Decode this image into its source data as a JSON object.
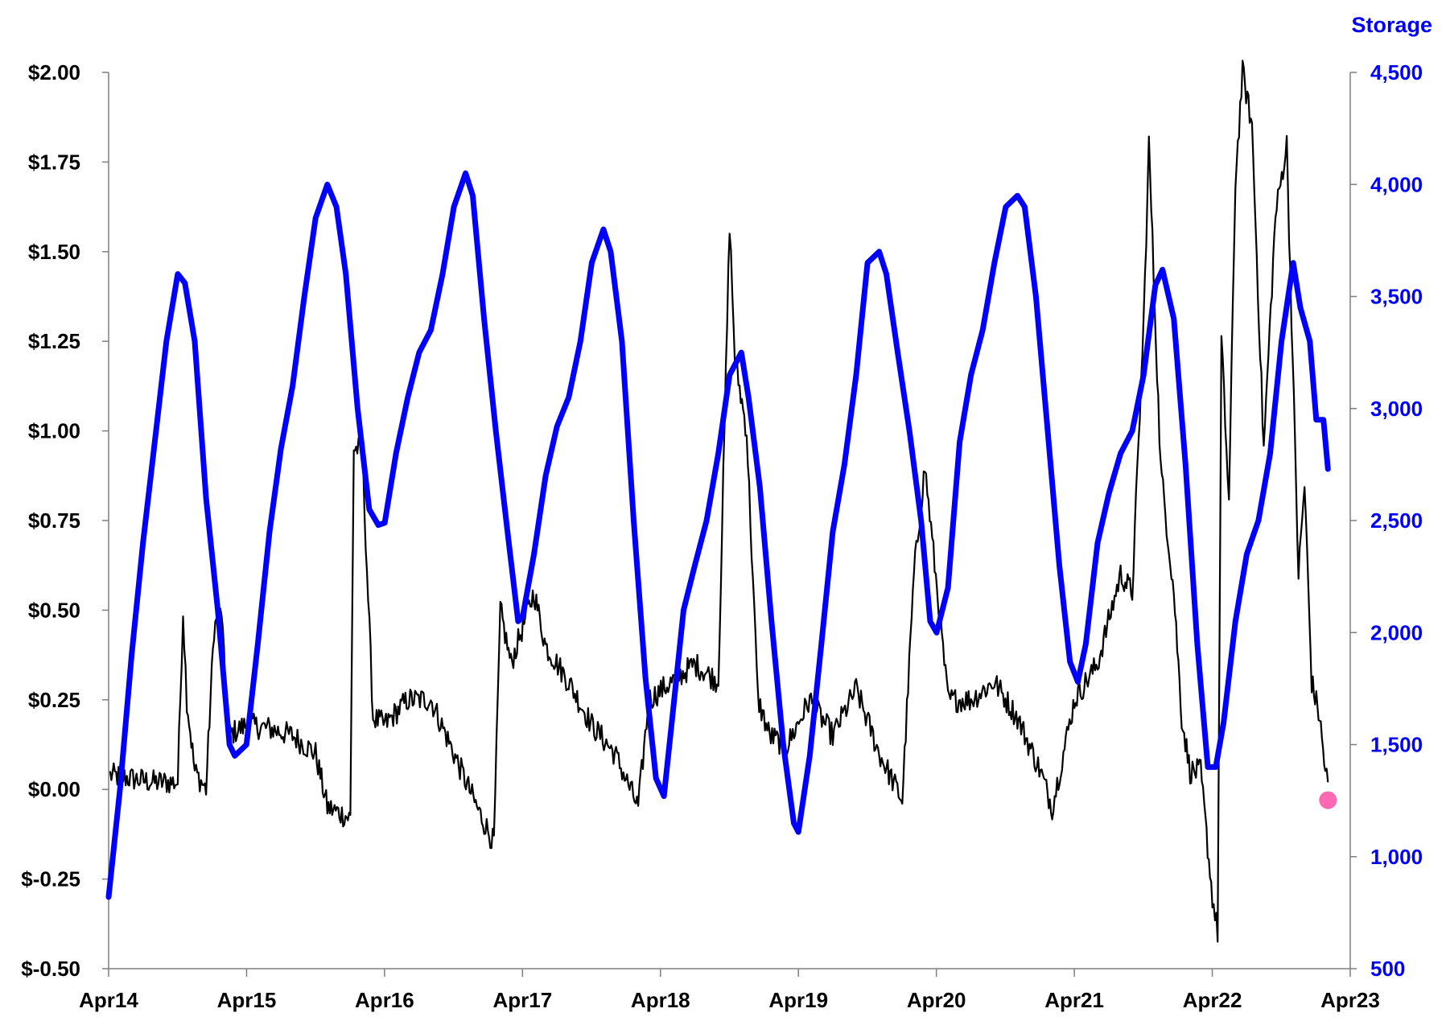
{
  "chart_data": {
    "type": "line",
    "title": "",
    "xlabel": "",
    "ylabel": "",
    "y2label": "Storage",
    "grid": false,
    "x_ticks": [
      "Apr14",
      "Apr15",
      "Apr16",
      "Apr17",
      "Apr18",
      "Apr19",
      "Apr20",
      "Apr21",
      "Apr22",
      "Apr23"
    ],
    "y_left": {
      "range": [
        -0.5,
        2.0
      ],
      "ticks": [
        -0.5,
        -0.25,
        0.0,
        0.25,
        0.5,
        0.75,
        1.0,
        1.25,
        1.5,
        1.75,
        2.0
      ],
      "tick_labels": [
        "$-0.50",
        "$-0.25",
        "$0.00",
        "$0.25",
        "$0.50",
        "$0.75",
        "$1.00",
        "$1.25",
        "$1.50",
        "$1.75",
        "$2.00"
      ]
    },
    "y_right": {
      "range": [
        500,
        4500
      ],
      "ticks": [
        500,
        1000,
        1500,
        2000,
        2500,
        3000,
        3500,
        4000,
        4500
      ],
      "tick_labels": [
        "500",
        "1,000",
        "1,500",
        "2,000",
        "2,500",
        "3,000",
        "3,500",
        "4,000",
        "4,500"
      ]
    },
    "series": [
      {
        "axis": "right",
        "color": "#0000ff",
        "style": "thick-line",
        "points": [
          [
            "2014-04-01",
            820
          ],
          [
            "2014-05-01",
            1300
          ],
          [
            "2014-06-01",
            1900
          ],
          [
            "2014-07-01",
            2400
          ],
          [
            "2014-08-01",
            2850
          ],
          [
            "2014-09-01",
            3300
          ],
          [
            "2014-10-01",
            3600
          ],
          [
            "2014-10-20",
            3560
          ],
          [
            "2014-11-15",
            3300
          ],
          [
            "2014-12-15",
            2600
          ],
          [
            "2015-01-15",
            2100
          ],
          [
            "2015-02-15",
            1500
          ],
          [
            "2015-03-01",
            1450
          ],
          [
            "2015-04-01",
            1500
          ],
          [
            "2015-05-01",
            1950
          ],
          [
            "2015-06-01",
            2450
          ],
          [
            "2015-07-01",
            2820
          ],
          [
            "2015-08-01",
            3100
          ],
          [
            "2015-09-01",
            3500
          ],
          [
            "2015-10-01",
            3850
          ],
          [
            "2015-11-01",
            4000
          ],
          [
            "2015-11-25",
            3900
          ],
          [
            "2015-12-20",
            3600
          ],
          [
            "2016-01-20",
            3000
          ],
          [
            "2016-02-20",
            2550
          ],
          [
            "2016-03-15",
            2480
          ],
          [
            "2016-04-01",
            2490
          ],
          [
            "2016-05-01",
            2800
          ],
          [
            "2016-06-01",
            3050
          ],
          [
            "2016-07-01",
            3250
          ],
          [
            "2016-08-01",
            3350
          ],
          [
            "2016-09-01",
            3600
          ],
          [
            "2016-10-01",
            3900
          ],
          [
            "2016-11-01",
            4050
          ],
          [
            "2016-11-20",
            3950
          ],
          [
            "2016-12-20",
            3400
          ],
          [
            "2017-01-20",
            2900
          ],
          [
            "2017-02-20",
            2450
          ],
          [
            "2017-03-20",
            2050
          ],
          [
            "2017-04-01",
            2070
          ],
          [
            "2017-05-01",
            2350
          ],
          [
            "2017-06-01",
            2700
          ],
          [
            "2017-07-01",
            2920
          ],
          [
            "2017-08-01",
            3050
          ],
          [
            "2017-09-01",
            3300
          ],
          [
            "2017-10-01",
            3650
          ],
          [
            "2017-11-01",
            3800
          ],
          [
            "2017-11-20",
            3700
          ],
          [
            "2017-12-20",
            3300
          ],
          [
            "2018-01-20",
            2500
          ],
          [
            "2018-02-20",
            1800
          ],
          [
            "2018-03-20",
            1350
          ],
          [
            "2018-04-10",
            1270
          ],
          [
            "2018-05-01",
            1600
          ],
          [
            "2018-06-01",
            2100
          ],
          [
            "2018-07-01",
            2300
          ],
          [
            "2018-08-01",
            2500
          ],
          [
            "2018-09-01",
            2800
          ],
          [
            "2018-10-01",
            3150
          ],
          [
            "2018-11-01",
            3250
          ],
          [
            "2018-11-20",
            3050
          ],
          [
            "2018-12-20",
            2650
          ],
          [
            "2019-01-20",
            2050
          ],
          [
            "2019-02-20",
            1500
          ],
          [
            "2019-03-20",
            1150
          ],
          [
            "2019-04-01",
            1110
          ],
          [
            "2019-05-01",
            1450
          ],
          [
            "2019-06-01",
            1950
          ],
          [
            "2019-07-01",
            2450
          ],
          [
            "2019-08-01",
            2750
          ],
          [
            "2019-09-01",
            3150
          ],
          [
            "2019-10-01",
            3650
          ],
          [
            "2019-11-01",
            3700
          ],
          [
            "2019-11-20",
            3600
          ],
          [
            "2019-12-20",
            3250
          ],
          [
            "2020-01-20",
            2900
          ],
          [
            "2020-02-20",
            2500
          ],
          [
            "2020-03-15",
            2050
          ],
          [
            "2020-04-01",
            2000
          ],
          [
            "2020-05-01",
            2200
          ],
          [
            "2020-06-01",
            2850
          ],
          [
            "2020-07-01",
            3150
          ],
          [
            "2020-08-01",
            3350
          ],
          [
            "2020-09-01",
            3650
          ],
          [
            "2020-10-01",
            3900
          ],
          [
            "2020-11-01",
            3950
          ],
          [
            "2020-11-20",
            3900
          ],
          [
            "2020-12-20",
            3500
          ],
          [
            "2021-01-20",
            2900
          ],
          [
            "2021-02-20",
            2300
          ],
          [
            "2021-03-20",
            1870
          ],
          [
            "2021-04-10",
            1780
          ],
          [
            "2021-05-01",
            1950
          ],
          [
            "2021-06-01",
            2400
          ],
          [
            "2021-07-01",
            2620
          ],
          [
            "2021-08-01",
            2800
          ],
          [
            "2021-09-01",
            2900
          ],
          [
            "2021-10-01",
            3150
          ],
          [
            "2021-11-01",
            3550
          ],
          [
            "2021-11-20",
            3620
          ],
          [
            "2021-12-20",
            3400
          ],
          [
            "2022-01-20",
            2750
          ],
          [
            "2022-02-20",
            1950
          ],
          [
            "2022-03-20",
            1400
          ],
          [
            "2022-04-10",
            1400
          ],
          [
            "2022-05-01",
            1600
          ],
          [
            "2022-06-01",
            2050
          ],
          [
            "2022-07-01",
            2350
          ],
          [
            "2022-08-01",
            2500
          ],
          [
            "2022-09-01",
            2800
          ],
          [
            "2022-10-01",
            3300
          ],
          [
            "2022-11-01",
            3650
          ],
          [
            "2022-11-20",
            3450
          ],
          [
            "2022-12-15",
            3300
          ],
          [
            "2023-01-01",
            2950
          ],
          [
            "2023-01-20",
            2950
          ],
          [
            "2023-02-01",
            2730
          ]
        ]
      },
      {
        "axis": "left",
        "color": "#000000",
        "style": "thin-noisy-line",
        "points": [
          [
            "2014-04-05",
            0.04
          ],
          [
            "2014-06-01",
            0.03
          ],
          [
            "2014-08-01",
            0.02
          ],
          [
            "2014-10-01",
            0.02
          ],
          [
            "2014-10-15",
            0.5
          ],
          [
            "2014-10-25",
            0.25
          ],
          [
            "2014-11-15",
            0.05
          ],
          [
            "2014-12-15",
            0.0
          ],
          [
            "2015-01-05",
            0.45
          ],
          [
            "2015-01-25",
            0.5
          ],
          [
            "2015-02-10",
            0.15
          ],
          [
            "2015-04-01",
            0.18
          ],
          [
            "2015-06-01",
            0.17
          ],
          [
            "2015-08-01",
            0.15
          ],
          [
            "2015-10-01",
            0.1
          ],
          [
            "2015-11-01",
            -0.05
          ],
          [
            "2016-01-01",
            -0.08
          ],
          [
            "2016-01-10",
            0.95
          ],
          [
            "2016-02-01",
            0.95
          ],
          [
            "2016-03-01",
            0.2
          ],
          [
            "2016-04-01",
            0.18
          ],
          [
            "2016-06-01",
            0.25
          ],
          [
            "2016-08-01",
            0.25
          ],
          [
            "2016-10-01",
            0.1
          ],
          [
            "2016-12-01",
            -0.05
          ],
          [
            "2017-01-15",
            -0.15
          ],
          [
            "2017-02-01",
            0.5
          ],
          [
            "2017-03-01",
            0.35
          ],
          [
            "2017-05-01",
            0.55
          ],
          [
            "2017-06-01",
            0.4
          ],
          [
            "2017-08-01",
            0.3
          ],
          [
            "2017-10-01",
            0.18
          ],
          [
            "2017-12-01",
            0.1
          ],
          [
            "2018-02-01",
            -0.05
          ],
          [
            "2018-03-01",
            0.25
          ],
          [
            "2018-05-01",
            0.3
          ],
          [
            "2018-07-01",
            0.35
          ],
          [
            "2018-09-01",
            0.3
          ],
          [
            "2018-10-01",
            1.58
          ],
          [
            "2018-10-15",
            1.2
          ],
          [
            "2018-11-15",
            1.0
          ],
          [
            "2018-12-15",
            0.25
          ],
          [
            "2019-01-15",
            0.15
          ],
          [
            "2019-03-01",
            0.12
          ],
          [
            "2019-05-01",
            0.25
          ],
          [
            "2019-07-01",
            0.15
          ],
          [
            "2019-09-01",
            0.28
          ],
          [
            "2019-11-01",
            0.1
          ],
          [
            "2020-01-01",
            -0.03
          ],
          [
            "2020-02-01",
            0.6
          ],
          [
            "2020-03-01",
            0.9
          ],
          [
            "2020-05-01",
            0.25
          ],
          [
            "2020-07-01",
            0.25
          ],
          [
            "2020-09-01",
            0.3
          ],
          [
            "2020-11-01",
            0.2
          ],
          [
            "2021-01-01",
            0.05
          ],
          [
            "2021-02-01",
            -0.05
          ],
          [
            "2021-04-01",
            0.25
          ],
          [
            "2021-06-01",
            0.35
          ],
          [
            "2021-08-01",
            0.6
          ],
          [
            "2021-09-01",
            0.55
          ],
          [
            "2021-10-01",
            1.3
          ],
          [
            "2021-10-15",
            1.8
          ],
          [
            "2021-11-15",
            0.9
          ],
          [
            "2021-12-20",
            0.55
          ],
          [
            "2022-01-10",
            0.2
          ],
          [
            "2022-02-01",
            0.05
          ],
          [
            "2022-03-01",
            0.05
          ],
          [
            "2022-04-01",
            -0.3
          ],
          [
            "2022-04-15",
            -0.4
          ],
          [
            "2022-04-25",
            1.25
          ],
          [
            "2022-05-15",
            0.8
          ],
          [
            "2022-06-01",
            1.7
          ],
          [
            "2022-06-20",
            2.0
          ],
          [
            "2022-07-15",
            1.85
          ],
          [
            "2022-08-15",
            0.95
          ],
          [
            "2022-09-15",
            1.6
          ],
          [
            "2022-10-15",
            1.8
          ],
          [
            "2022-11-15",
            0.6
          ],
          [
            "2022-12-01",
            0.85
          ],
          [
            "2022-12-20",
            0.3
          ],
          [
            "2023-01-10",
            0.2
          ],
          [
            "2023-01-25",
            0.05
          ],
          [
            "2023-02-01",
            0.02
          ]
        ]
      }
    ],
    "marker": {
      "axis": "left",
      "x": "2023-02-01",
      "y": -0.03,
      "color": "#ff69b4"
    }
  }
}
